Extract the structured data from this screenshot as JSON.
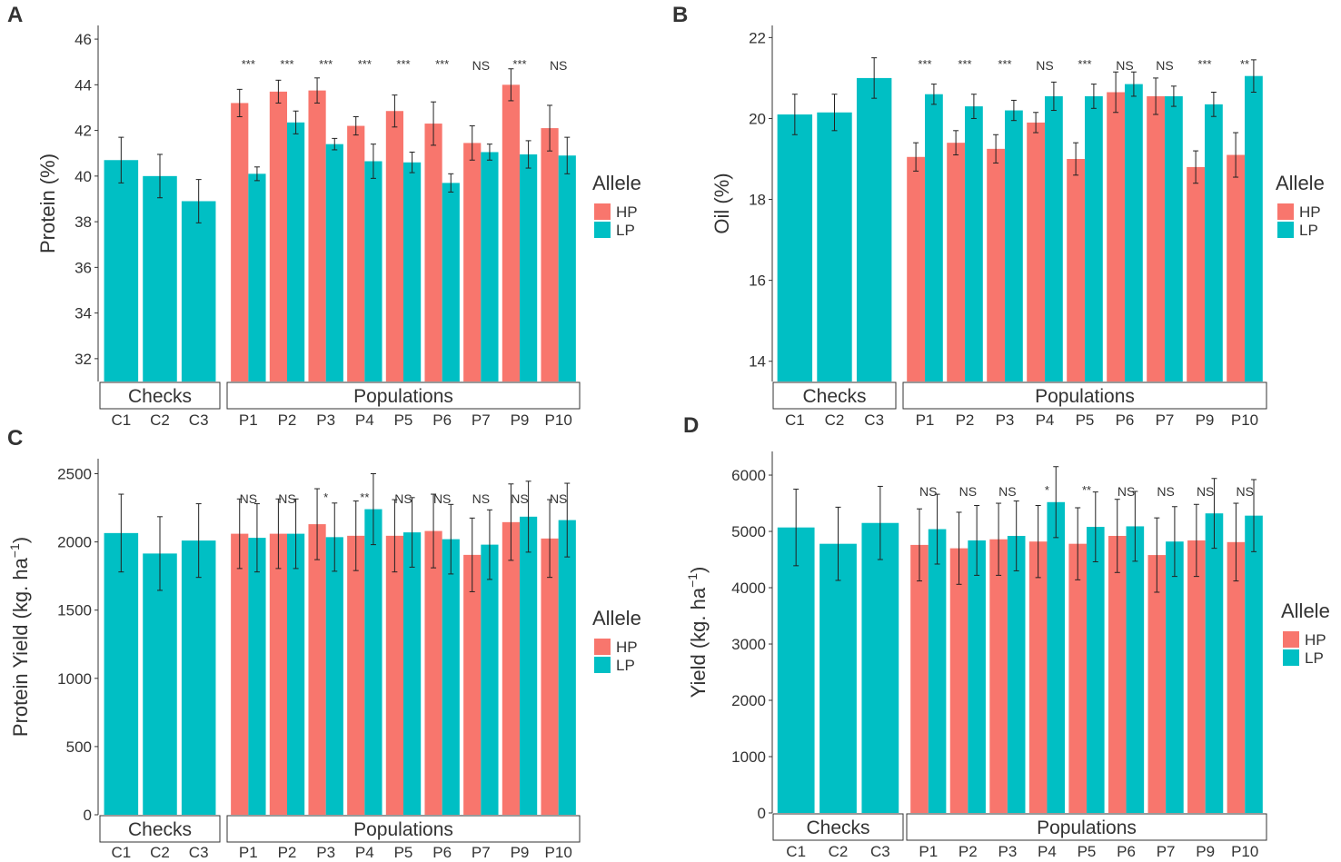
{
  "colors": {
    "hp": "#F8766D",
    "lp": "#00BFC4",
    "axis": "#333333",
    "sig": "#555555"
  },
  "legend": {
    "title": "Allele",
    "items": [
      "HP",
      "LP"
    ]
  },
  "chart_data": [
    {
      "panel": "A",
      "type": "bar",
      "ylabel": "Protein (%)",
      "ylim": [
        31,
        46.6
      ],
      "yticks": [
        32,
        34,
        36,
        38,
        40,
        42,
        44,
        46
      ],
      "group_labels": [
        "Checks",
        "Populations"
      ],
      "checks": {
        "categories": [
          "C1",
          "C2",
          "C3"
        ],
        "values": [
          40.7,
          40.0,
          38.9
        ],
        "errors": [
          1.0,
          0.95,
          0.95
        ]
      },
      "populations": {
        "categories": [
          "P1",
          "P2",
          "P3",
          "P4",
          "P5",
          "P6",
          "P7",
          "P9",
          "P10"
        ],
        "series": [
          {
            "name": "HP",
            "values": [
              43.2,
              43.7,
              43.75,
              42.2,
              42.85,
              42.3,
              41.45,
              44.0,
              42.1
            ],
            "errors": [
              0.6,
              0.5,
              0.55,
              0.4,
              0.7,
              0.95,
              0.75,
              0.7,
              1.0
            ]
          },
          {
            "name": "LP",
            "values": [
              40.1,
              42.35,
              41.4,
              40.65,
              40.6,
              39.7,
              41.05,
              40.95,
              40.9
            ],
            "errors": [
              0.3,
              0.5,
              0.25,
              0.75,
              0.45,
              0.4,
              0.35,
              0.6,
              0.8
            ]
          }
        ],
        "significance": [
          "***",
          "***",
          "***",
          "***",
          "***",
          "***",
          "NS",
          "***",
          "NS"
        ]
      }
    },
    {
      "panel": "B",
      "type": "bar",
      "ylabel": "Oil (%)",
      "ylim": [
        13.5,
        22.3
      ],
      "yticks": [
        14,
        16,
        18,
        20,
        22
      ],
      "group_labels": [
        "Checks",
        "Populations"
      ],
      "checks": {
        "categories": [
          "C1",
          "C2",
          "C3"
        ],
        "values": [
          20.1,
          20.15,
          21.0
        ],
        "errors": [
          0.5,
          0.45,
          0.5
        ]
      },
      "populations": {
        "categories": [
          "P1",
          "P2",
          "P3",
          "P4",
          "P5",
          "P6",
          "P7",
          "P9",
          "P10"
        ],
        "series": [
          {
            "name": "HP",
            "values": [
              19.05,
              19.4,
              19.25,
              19.9,
              19.0,
              20.65,
              20.55,
              18.8,
              19.1
            ],
            "errors": [
              0.35,
              0.3,
              0.35,
              0.25,
              0.4,
              0.5,
              0.45,
              0.4,
              0.55
            ]
          },
          {
            "name": "LP",
            "values": [
              20.6,
              20.3,
              20.2,
              20.55,
              20.55,
              20.85,
              20.55,
              20.35,
              21.05
            ],
            "errors": [
              0.25,
              0.3,
              0.25,
              0.35,
              0.3,
              0.3,
              0.25,
              0.3,
              0.4
            ]
          }
        ],
        "significance": [
          "***",
          "***",
          "***",
          "NS",
          "***",
          "NS",
          "NS",
          "***",
          "**"
        ]
      }
    },
    {
      "panel": "C",
      "type": "bar",
      "ylabel": "Protein Yield  (kg. ha",
      "ylabel_sup": "−1",
      "ylabel_end": ")",
      "ylim": [
        0,
        2610
      ],
      "yticks": [
        0,
        500,
        1000,
        1500,
        2000,
        2500
      ],
      "group_labels": [
        "Checks",
        "Populations"
      ],
      "checks": {
        "categories": [
          "C1",
          "C2",
          "C3"
        ],
        "values": [
          2065,
          1915,
          2010
        ],
        "errors": [
          285,
          270,
          270
        ]
      },
      "populations": {
        "categories": [
          "P1",
          "P2",
          "P3",
          "P4",
          "P5",
          "P6",
          "P7",
          "P9",
          "P10"
        ],
        "series": [
          {
            "name": "HP",
            "values": [
              2060,
              2060,
              2130,
              2045,
              2045,
              2080,
              1905,
              2145,
              2025
            ],
            "errors": [
              255,
              255,
              260,
              255,
              265,
              270,
              270,
              280,
              285
            ]
          },
          {
            "name": "LP",
            "values": [
              2030,
              2060,
              2035,
              2240,
              2070,
              2020,
              1980,
              2185,
              2160
            ],
            "errors": [
              250,
              255,
              250,
              260,
              255,
              255,
              255,
              260,
              270
            ]
          }
        ],
        "significance": [
          "NS",
          "NS",
          "*",
          "**",
          "NS",
          "NS",
          "NS",
          "NS",
          "NS"
        ]
      }
    },
    {
      "panel": "D",
      "type": "bar",
      "ylabel": "Yield  (kg. ha",
      "ylabel_sup": "−1",
      "ylabel_end": ")",
      "ylim": [
        0,
        6420
      ],
      "yticks": [
        0,
        1000,
        2000,
        3000,
        4000,
        5000,
        6000
      ],
      "group_labels": [
        "Checks",
        "Populations"
      ],
      "checks": {
        "categories": [
          "C1",
          "C2",
          "C3"
        ],
        "values": [
          5070,
          4780,
          5150
        ],
        "errors": [
          680,
          650,
          650
        ]
      },
      "populations": {
        "categories": [
          "P1",
          "P2",
          "P3",
          "P4",
          "P5",
          "P6",
          "P7",
          "P9",
          "P10"
        ],
        "series": [
          {
            "name": "HP",
            "values": [
              4760,
              4700,
              4860,
              4820,
              4780,
              4920,
              4580,
              4840,
              4810
            ],
            "errors": [
              640,
              640,
              640,
              640,
              640,
              650,
              660,
              640,
              690
            ]
          },
          {
            "name": "LP",
            "values": [
              5040,
              4840,
              4920,
              5520,
              5080,
              5090,
              4820,
              5320,
              5280
            ],
            "errors": [
              620,
              620,
              620,
              630,
              620,
              620,
              620,
              620,
              640
            ]
          }
        ],
        "significance": [
          "NS",
          "NS",
          "NS",
          "*",
          "**",
          "NS",
          "NS",
          "NS",
          "NS"
        ]
      }
    }
  ]
}
